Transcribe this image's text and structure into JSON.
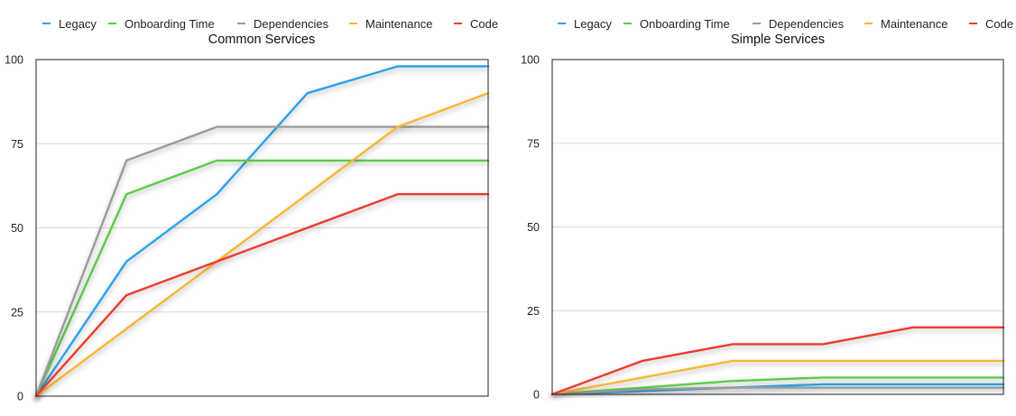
{
  "chart_data": [
    {
      "type": "line",
      "title": "Common Services",
      "xlabel": "",
      "ylabel": "",
      "ylim": [
        0,
        100
      ],
      "yticks": [
        "0",
        "25",
        "50",
        "75",
        "100"
      ],
      "grid": true,
      "legend_position": "top",
      "x": [
        0,
        1,
        2,
        3,
        4,
        5
      ],
      "series": [
        {
          "name": "Legacy",
          "color": "#2aa3ea",
          "values": [
            0,
            40,
            60,
            90,
            98,
            98
          ]
        },
        {
          "name": "Onboarding Time",
          "color": "#5ccc47",
          "values": [
            0,
            60,
            70,
            70,
            70,
            70
          ]
        },
        {
          "name": "Dependencies",
          "color": "#9b9b9b",
          "values": [
            0,
            70,
            80,
            80,
            80,
            80
          ]
        },
        {
          "name": "Maintenance",
          "color": "#f7b731",
          "values": [
            0,
            20,
            40,
            60,
            80,
            90
          ]
        },
        {
          "name": "Code",
          "color": "#ee3a2c",
          "values": [
            0,
            30,
            40,
            50,
            60,
            60
          ]
        }
      ]
    },
    {
      "type": "line",
      "title": "Simple Services",
      "xlabel": "",
      "ylabel": "",
      "ylim": [
        0,
        100
      ],
      "yticks": [
        "0",
        "25",
        "50",
        "75",
        "100"
      ],
      "grid": true,
      "legend_position": "top",
      "x": [
        0,
        1,
        2,
        3,
        4,
        5
      ],
      "series": [
        {
          "name": "Legacy",
          "color": "#2aa3ea",
          "values": [
            0,
            1,
            2,
            3,
            3,
            3
          ]
        },
        {
          "name": "Onboarding Time",
          "color": "#5ccc47",
          "values": [
            0,
            2,
            4,
            5,
            5,
            5
          ]
        },
        {
          "name": "Dependencies",
          "color": "#9b9b9b",
          "values": [
            0,
            1.5,
            2,
            2,
            2,
            2
          ]
        },
        {
          "name": "Maintenance",
          "color": "#f7b731",
          "values": [
            0,
            5,
            10,
            10,
            10,
            10
          ]
        },
        {
          "name": "Code",
          "color": "#ee3a2c",
          "values": [
            0,
            10,
            15,
            15,
            20,
            20
          ]
        }
      ]
    }
  ]
}
